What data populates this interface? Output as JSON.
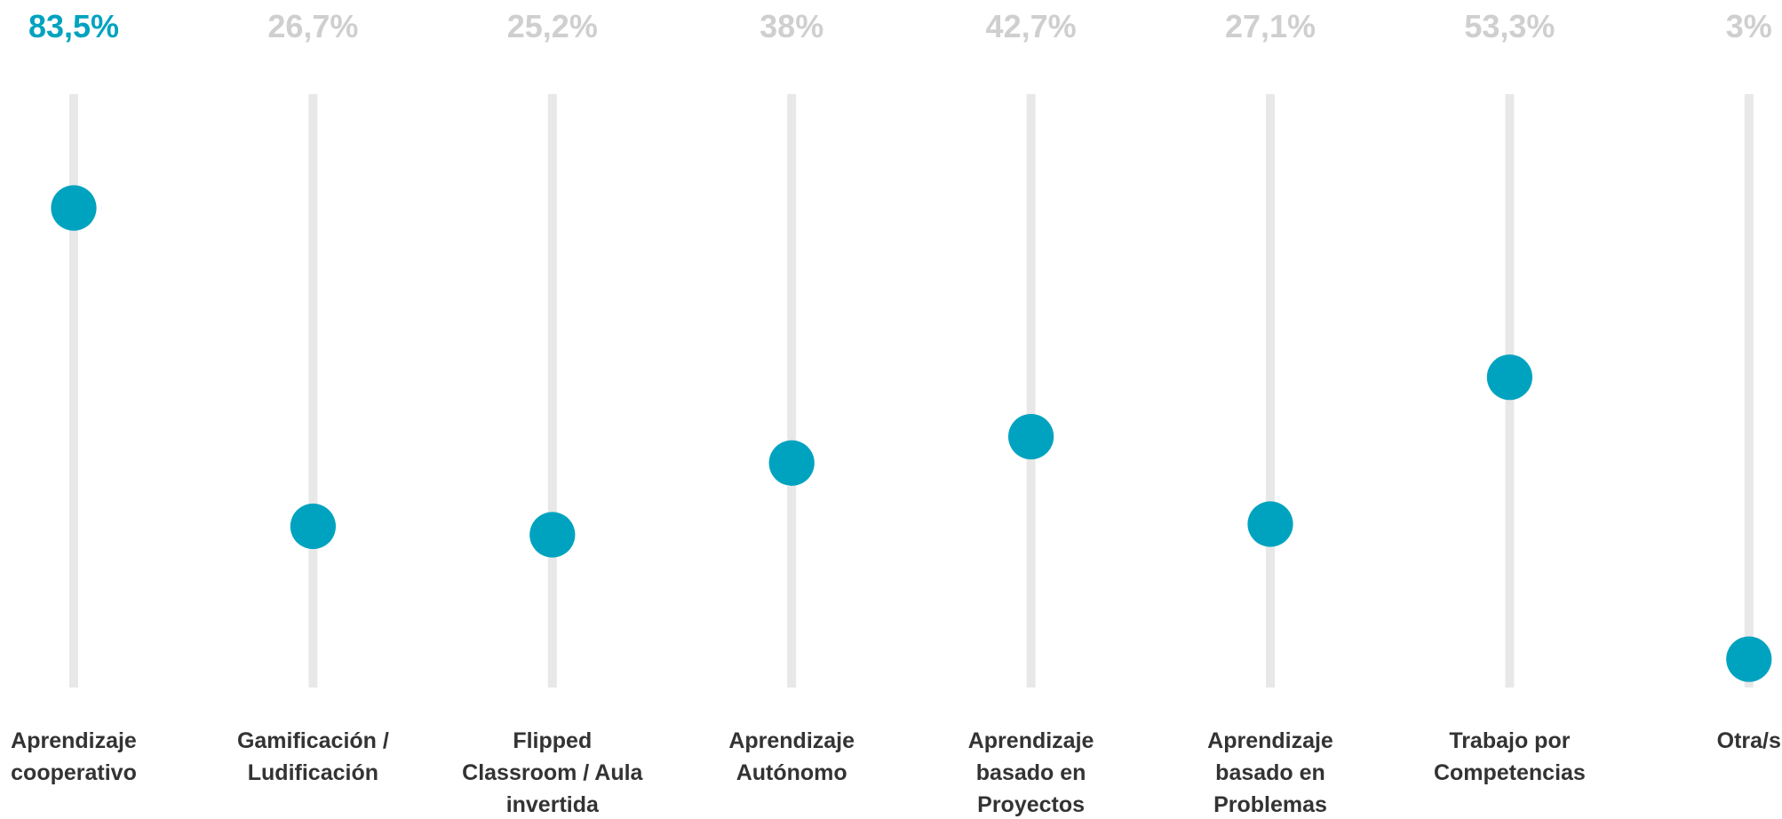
{
  "chart_data": {
    "type": "lollipop",
    "categories": [
      "Aprendizaje cooperativo",
      "Gamificación / Ludificación",
      "Flipped Classroom / Aula invertida",
      "Aprendizaje Autónomo",
      "Aprendizaje basado en Proyectos",
      "Aprendizaje basado en Problemas",
      "Trabajo por Competencias",
      "Otra/s"
    ],
    "values": [
      83.5,
      26.7,
      25.2,
      38,
      42.7,
      27.1,
      53.3,
      3
    ],
    "value_labels": [
      "83,5%",
      "26,7%",
      "25,2%",
      "38%",
      "42,7%",
      "27,1%",
      "53,3%",
      "3%"
    ],
    "value_label_colors": [
      "#00a3bf",
      "#cfcfcf",
      "#cfcfcf",
      "#cfcfcf",
      "#cfcfcf",
      "#cfcfcf",
      "#cfcfcf",
      "#cfcfcf"
    ],
    "color": "#00a3bf",
    "ylim": [
      0,
      100
    ]
  }
}
